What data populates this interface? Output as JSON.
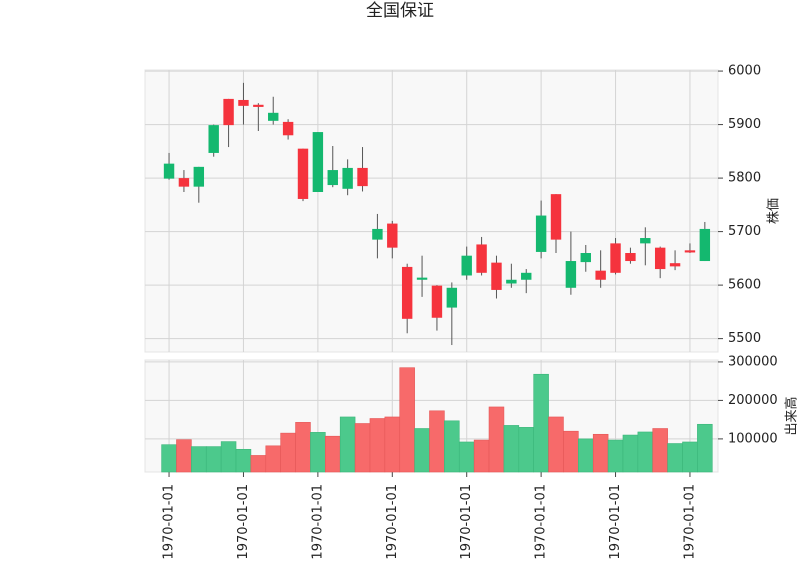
{
  "chart_data": {
    "type": "candlestick",
    "title": "全国保证",
    "ylabel": "株価",
    "categories": [
      "1970-01-01",
      null,
      null,
      null,
      null,
      "1970-01-01",
      null,
      null,
      null,
      null,
      "1970-01-01",
      null,
      null,
      null,
      null,
      "1970-01-01",
      null,
      null,
      null,
      null,
      "1970-01-01",
      null,
      null,
      null,
      null,
      "1970-01-01",
      null,
      null,
      null,
      null,
      "1970-01-01",
      null,
      null,
      null,
      null,
      "1970-01-01",
      null
    ],
    "open": [
      5799,
      5800,
      5784,
      5847,
      5948,
      5946,
      5937,
      5907,
      5905,
      5855,
      5774,
      5787,
      5780,
      5819,
      5685,
      5715,
      5634,
      5610,
      5599,
      5558,
      5618,
      5676,
      5642,
      5603,
      5610,
      5662,
      5770,
      5595,
      5643,
      5627,
      5678,
      5660,
      5678,
      5670,
      5641,
      5665,
      5645
    ],
    "high": [
      5847,
      5815,
      5821,
      5900,
      5948,
      5978,
      5940,
      5952,
      5910,
      5855,
      5886,
      5860,
      5835,
      5858,
      5733,
      5720,
      5640,
      5655,
      5600,
      5605,
      5672,
      5690,
      5655,
      5640,
      5630,
      5758,
      5770,
      5700,
      5675,
      5665,
      5688,
      5670,
      5708,
      5672,
      5665,
      5678,
      5718
    ],
    "low": [
      5797,
      5774,
      5754,
      5840,
      5858,
      5900,
      5888,
      5900,
      5872,
      5757,
      5774,
      5783,
      5768,
      5775,
      5650,
      5650,
      5510,
      5578,
      5515,
      5488,
      5610,
      5618,
      5575,
      5595,
      5585,
      5650,
      5660,
      5582,
      5625,
      5595,
      5620,
      5640,
      5637,
      5613,
      5628,
      5660,
      5645
    ],
    "close": [
      5827,
      5784,
      5821,
      5899,
      5899,
      5935,
      5933,
      5922,
      5880,
      5761,
      5886,
      5815,
      5819,
      5785,
      5705,
      5670,
      5537,
      5614,
      5539,
      5595,
      5655,
      5623,
      5591,
      5610,
      5623,
      5730,
      5685,
      5645,
      5660,
      5610,
      5623,
      5645,
      5688,
      5630,
      5635,
      5661,
      5705
    ],
    "up_color": "#14b86f",
    "down_color": "#f5333d",
    "ylim": [
      5475,
      6002
    ],
    "yticks": [
      5500,
      5600,
      5700,
      5800,
      5900,
      6000
    ],
    "grid": true,
    "volume": {
      "ylabel": "出来高",
      "values": [
        85000,
        98000,
        80000,
        80000,
        93000,
        73000,
        57000,
        82000,
        115000,
        143000,
        117000,
        107000,
        157000,
        140000,
        153000,
        157000,
        285000,
        127000,
        173000,
        147000,
        92000,
        97000,
        183000,
        135000,
        130000,
        268000,
        157000,
        120000,
        100000,
        112000,
        97000,
        110000,
        118000,
        127000,
        88000,
        92000,
        138000
      ],
      "up_color": "#4cc98c",
      "down_color": "#f76a6a",
      "ylim": [
        14000,
        305000
      ],
      "yticks": [
        100000,
        200000,
        300000
      ]
    }
  }
}
